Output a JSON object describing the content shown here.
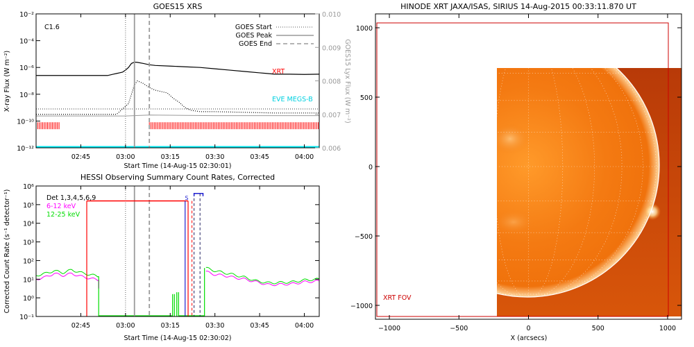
{
  "colors": {
    "xrt": "#ff0000",
    "eve": "#00e5ee",
    "hessi_blue": "#1f1fd0",
    "magenta": "#ff00ff",
    "green": "#00dd00",
    "grey": "#9a9a9a",
    "black": "#000000"
  },
  "chart_data": [
    {
      "id": "goes",
      "type": "line",
      "title": "GOES15 XRS",
      "xlabel": "Start Time (14-Aug-15 02:30:01)",
      "ylabel_left": "X-ray Flux (W m⁻²)",
      "ylabel_right": "GOES15 Lyx Flux (W m⁻²)",
      "class_label": "C1.6",
      "x_ticks": [
        "02:45",
        "03:00",
        "03:15",
        "03:30",
        "03:45",
        "04:00"
      ],
      "x_tick_minutes": [
        15,
        30,
        45,
        60,
        75,
        90
      ],
      "xlim_minutes": [
        0,
        95
      ],
      "y_left_ticks": [
        "10⁻²",
        "10⁻⁴",
        "10⁻⁶",
        "10⁻⁸",
        "10⁻¹⁰",
        "10⁻¹²"
      ],
      "y_left_exponents": [
        -2,
        -4,
        -6,
        -8,
        -10,
        -12
      ],
      "y_left_log_range": [
        -12,
        -2
      ],
      "y_right_ticks": [
        "0.010",
        "0.009",
        "0.008",
        "0.007",
        "0.006"
      ],
      "y_right_values": [
        0.01,
        0.009,
        0.008,
        0.007,
        0.006
      ],
      "y_right_range": [
        0.006,
        0.01
      ],
      "legend": [
        "GOES Start",
        "GOES Peak",
        "GOES End"
      ],
      "events_minutes": {
        "start": 30,
        "peak": 33,
        "end": 38
      },
      "label_xrt": "XRT",
      "label_eve": "EVE MEGS-B",
      "series": [
        {
          "name": "long",
          "x": [
            0,
            10,
            20,
            24,
            25,
            26,
            27,
            28,
            29,
            30,
            31,
            32,
            33,
            34,
            36,
            38,
            40,
            45,
            50,
            55,
            60,
            65,
            70,
            75,
            80,
            85,
            90,
            95
          ],
          "y_log": [
            -6.6,
            -6.6,
            -6.6,
            -6.6,
            -6.55,
            -6.5,
            -6.45,
            -6.4,
            -6.35,
            -6.2,
            -6.0,
            -5.7,
            -5.6,
            -5.62,
            -5.7,
            -5.8,
            -5.85,
            -5.9,
            -5.95,
            -6.0,
            -6.1,
            -6.2,
            -6.3,
            -6.4,
            -6.5,
            -6.5,
            -6.52,
            -6.5
          ]
        },
        {
          "name": "short",
          "x": [
            0,
            10,
            20,
            25,
            27,
            28,
            29,
            30,
            31,
            32,
            33,
            34,
            36,
            38,
            40,
            42,
            44,
            46,
            48,
            50,
            52,
            55,
            60,
            70,
            80,
            90,
            95
          ],
          "y_log": [
            -9.5,
            -9.5,
            -9.5,
            -9.5,
            -9.5,
            -9.3,
            -9.1,
            -8.9,
            -8.7,
            -8.0,
            -7.3,
            -7.0,
            -7.2,
            -7.5,
            -7.7,
            -7.8,
            -7.9,
            -8.3,
            -8.6,
            -9.0,
            -9.2,
            -9.3,
            -9.3,
            -9.35,
            -9.4,
            -9.4,
            -9.4
          ]
        },
        {
          "name": "lyx",
          "x": [
            0,
            30,
            38,
            60,
            90,
            95
          ],
          "y": [
            0.00695,
            0.00695,
            0.00698,
            0.00696,
            0.00696,
            0.00696
          ]
        }
      ],
      "xrt_coverage_minutes": [
        [
          0,
          8
        ],
        [
          38,
          95
        ]
      ],
      "xrt_level_log": -10.35,
      "eve_level_log": -12.0
    },
    {
      "id": "hessi",
      "type": "line",
      "title": "HESSI Observing Summary Count Rates, Corrected",
      "xlabel": "Start Time (14-Aug-15 02:30:02)",
      "ylabel": "Corrected Count Rate (s⁻¹ detector⁻¹)",
      "x_ticks": [
        "02:45",
        "03:00",
        "03:15",
        "03:30",
        "03:45",
        "04:00"
      ],
      "x_tick_minutes": [
        15,
        30,
        45,
        60,
        75,
        90
      ],
      "xlim_minutes": [
        0,
        95
      ],
      "y_ticks": [
        "10⁶",
        "10⁵",
        "10⁴",
        "10³",
        "10²",
        "10¹",
        "10⁰",
        "10⁻¹"
      ],
      "y_exponents": [
        6,
        5,
        4,
        3,
        2,
        1,
        0,
        -1
      ],
      "y_log_range": [
        -1,
        6
      ],
      "legend": [
        "Det 1,3,4,5,6,9",
        "6-12 keV",
        "12-25 keV"
      ],
      "events_minutes": {
        "start": 30,
        "peak": 33,
        "end": 38
      },
      "red_markers_minutes": [
        17,
        51
      ],
      "blue_markers_minutes": [
        50,
        53,
        55
      ],
      "saa_label": "S",
      "saa_bar_minutes": [
        53,
        56
      ],
      "series": [
        {
          "name": "6-12 keV",
          "segments": [
            {
              "x": [
                0,
                3,
                6,
                9,
                12,
                15,
                18,
                21
              ],
              "y_log": [
                1.0,
                1.1,
                1.3,
                1.2,
                1.3,
                1.15,
                1.05,
                0.95
              ]
            },
            {
              "x": [
                57,
                60,
                63,
                66,
                70,
                74,
                78,
                82,
                86,
                90,
                95
              ],
              "y_log": [
                1.4,
                1.25,
                1.2,
                1.1,
                1.0,
                0.85,
                0.7,
                0.72,
                0.75,
                0.85,
                0.9
              ]
            }
          ]
        },
        {
          "name": "12-25 keV",
          "segments": [
            {
              "x": [
                0,
                3,
                6,
                9,
                12,
                15,
                18,
                21
              ],
              "y_log": [
                1.2,
                1.3,
                1.45,
                1.35,
                1.5,
                1.35,
                1.25,
                1.15
              ]
            },
            {
              "x": [
                57,
                60,
                63,
                66,
                70,
                74,
                78,
                82,
                86,
                90,
                95
              ],
              "y_log": [
                1.6,
                1.45,
                1.35,
                1.25,
                1.1,
                0.9,
                0.8,
                0.82,
                0.85,
                0.95,
                1.0
              ]
            }
          ]
        }
      ]
    },
    {
      "id": "xrt_image",
      "type": "image",
      "title": "HINODE XRT JAXA/ISAS, SIRIUS 14-Aug-2015 00:33:11.870 UT",
      "xlabel": "X (arcsecs)",
      "x_ticks": [
        "−1000",
        "−500",
        "0",
        "500",
        "1000"
      ],
      "x_tick_values": [
        -1000,
        -500,
        0,
        500,
        1000
      ],
      "y_ticks": [
        "1000",
        "500",
        "0",
        "−500",
        "−1000"
      ],
      "y_tick_values": [
        1000,
        500,
        0,
        -500,
        -1000
      ],
      "xlim": [
        -1100,
        1100
      ],
      "ylim": [
        -1100,
        1100
      ],
      "fov_label": "XRT FOV",
      "fov_box": [
        -1100,
        -1070,
        1030,
        1040
      ],
      "image_extent": [
        -230,
        990,
        -1100,
        710
      ],
      "limb_radius": 950
    }
  ]
}
